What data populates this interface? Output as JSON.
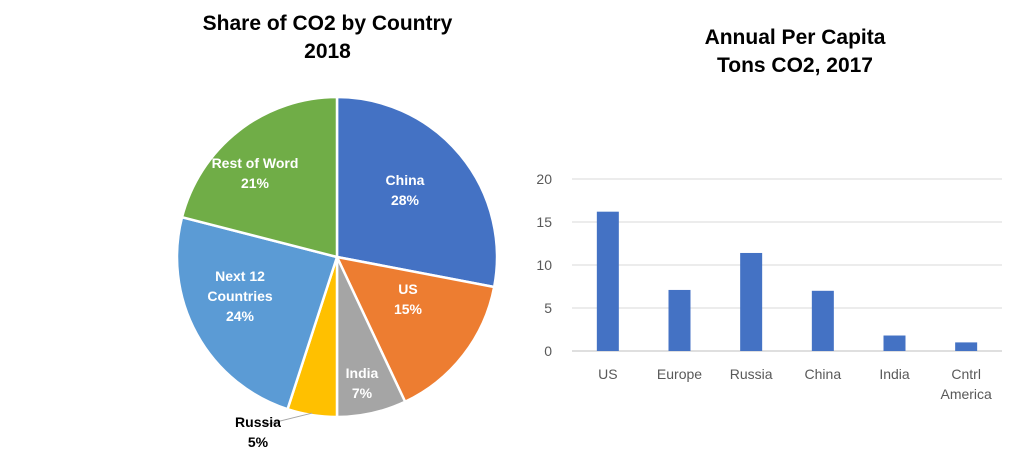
{
  "chart_data": [
    {
      "type": "pie",
      "title": "Share of CO2 by Country",
      "subtitle": "2018",
      "slices": [
        {
          "label": "China",
          "value": 28,
          "value_label": "28%",
          "color": "#4472C4"
        },
        {
          "label": "US",
          "value": 15,
          "value_label": "15%",
          "color": "#ED7D31"
        },
        {
          "label": "India",
          "value": 7,
          "value_label": "7%",
          "color": "#A5A5A5"
        },
        {
          "label": "Russia",
          "value": 5,
          "value_label": "5%",
          "color": "#FFC000"
        },
        {
          "label": "Next 12 Countries",
          "value": 24,
          "value_label": "24%",
          "color": "#5B9BD5"
        },
        {
          "label": "Rest of Word",
          "value": 21,
          "value_label": "21%",
          "color": "#70AD47"
        }
      ]
    },
    {
      "type": "bar",
      "title": "Annual Per Capita",
      "subtitle": "Tons CO2, 2017",
      "categories": [
        "US",
        "Europe",
        "Russia",
        "China",
        "India",
        "Cntrl America"
      ],
      "values": [
        16.2,
        7.1,
        11.4,
        7.0,
        1.8,
        1.0
      ],
      "ylim": [
        0,
        20
      ],
      "yticks": [
        0,
        5,
        10,
        15,
        20
      ],
      "grid": true,
      "bar_color": "#4472C4"
    }
  ]
}
